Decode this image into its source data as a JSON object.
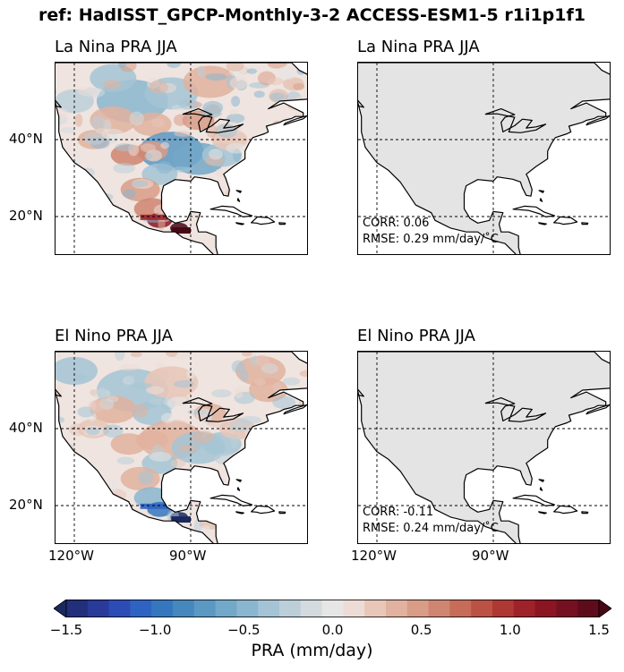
{
  "suptitle": "ref: HadISST_GPCP-Monthly-3-2 ACCESS-ESM1-5 r1i1p1f1",
  "panels": [
    {
      "title": "La Nina PRA JJA",
      "kind": "model",
      "scheme": "nina"
    },
    {
      "title": "La Nina PRA JJA",
      "kind": "ref",
      "corr": "CORR: 0.06",
      "rmse": "RMSE: 0.29 mm/day/$^\\circ$C"
    },
    {
      "title": "El Nino PRA JJA",
      "kind": "model",
      "scheme": "nino"
    },
    {
      "title": "El Nino PRA JJA",
      "kind": "ref",
      "corr": "CORR: -0.11",
      "rmse": "RMSE: 0.24 mm/day/$^\\circ$C"
    }
  ],
  "lat_labels": [
    "40°N",
    "20°N"
  ],
  "lon_labels": [
    "120°W",
    "90°W"
  ],
  "colorbar": {
    "ticks": [
      "−1.5",
      "−1.0",
      "−0.5",
      "0.0",
      "0.5",
      "1.0",
      "1.5"
    ],
    "label": "PRA (mm/day)",
    "range": [
      -1.5,
      1.5
    ],
    "colors": [
      "#1b2a5e",
      "#222f7a",
      "#293a9a",
      "#2e4cb5",
      "#2f63c2",
      "#3577bf",
      "#4688bd",
      "#5b98c3",
      "#72a8c8",
      "#8ab6cf",
      "#a4c4d5",
      "#bccfd9",
      "#d3dbde",
      "#e6e6e6",
      "#eddcd5",
      "#e8c7b9",
      "#e0b29f",
      "#d89c87",
      "#cf8571",
      "#c66c59",
      "#bb5244",
      "#ae3833",
      "#9e2229",
      "#8b1523",
      "#751021",
      "#5e0c1c",
      "#470816"
    ]
  }
}
